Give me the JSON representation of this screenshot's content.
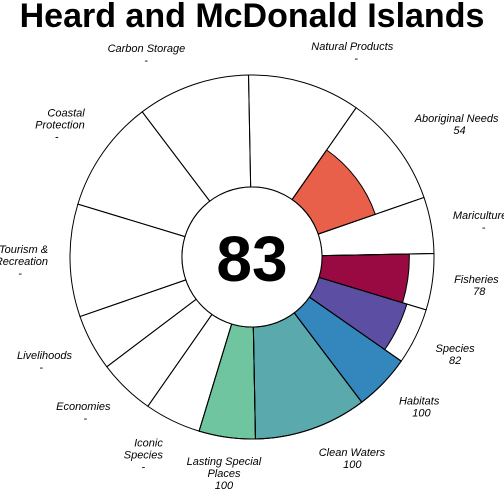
{
  "chart_data": {
    "type": "flower",
    "title": "Heard and McDonald Islands",
    "center_score": "83",
    "max_score": 100,
    "goals": [
      {
        "name": "Fisheries",
        "label_lines": [
          "Fisheries"
        ],
        "value": 78,
        "value_text": "78",
        "color": "#9a0a42",
        "weight": 1
      },
      {
        "name": "Mariculture",
        "label_lines": [
          "Mariculture"
        ],
        "value": null,
        "value_text": "-",
        "color": "#c83c46",
        "weight": 1
      },
      {
        "name": "Aboriginal Needs",
        "label_lines": [
          "Aboriginal Needs"
        ],
        "value": 54,
        "value_text": "54",
        "color": "#e8604a",
        "weight": 2
      },
      {
        "name": "Natural Products",
        "label_lines": [
          "Natural Products"
        ],
        "value": null,
        "value_text": "-",
        "color": "#f3a15a",
        "weight": 2
      },
      {
        "name": "Carbon Storage",
        "label_lines": [
          "Carbon Storage"
        ],
        "value": null,
        "value_text": "-",
        "color": "#fbd17a",
        "weight": 2
      },
      {
        "name": "Coastal Protection",
        "label_lines": [
          "Coastal",
          "Protection"
        ],
        "value": null,
        "value_text": "-",
        "color": "#fef1a4",
        "weight": 2
      },
      {
        "name": "Tourism & Recreation",
        "label_lines": [
          "Tourism &",
          "Recreation"
        ],
        "value": null,
        "value_text": "-",
        "color": "#f4fab0",
        "weight": 2
      },
      {
        "name": "Livelihoods",
        "label_lines": [
          "Livelihoods"
        ],
        "value": null,
        "value_text": "-",
        "color": "#dff1a0",
        "weight": 1
      },
      {
        "name": "Economies",
        "label_lines": [
          "Economies"
        ],
        "value": null,
        "value_text": "-",
        "color": "#bfe6a0",
        "weight": 1
      },
      {
        "name": "Iconic Species",
        "label_lines": [
          "Iconic",
          "Species"
        ],
        "value": null,
        "value_text": "-",
        "color": "#9dd8a4",
        "weight": 1
      },
      {
        "name": "Lasting Special Places",
        "label_lines": [
          "Lasting Special",
          "Places"
        ],
        "value": 100,
        "value_text": "100",
        "color": "#6ec5a0",
        "weight": 1
      },
      {
        "name": "Clean Waters",
        "label_lines": [
          "Clean Waters"
        ],
        "value": 100,
        "value_text": "100",
        "color": "#5aa9ad",
        "weight": 2
      },
      {
        "name": "Habitats",
        "label_lines": [
          "Habitats"
        ],
        "value": 100,
        "value_text": "100",
        "color": "#3387bd",
        "weight": 1
      },
      {
        "name": "Species",
        "label_lines": [
          "Species"
        ],
        "value": 82,
        "value_text": "82",
        "color": "#5b4ea3",
        "weight": 1
      }
    ]
  }
}
